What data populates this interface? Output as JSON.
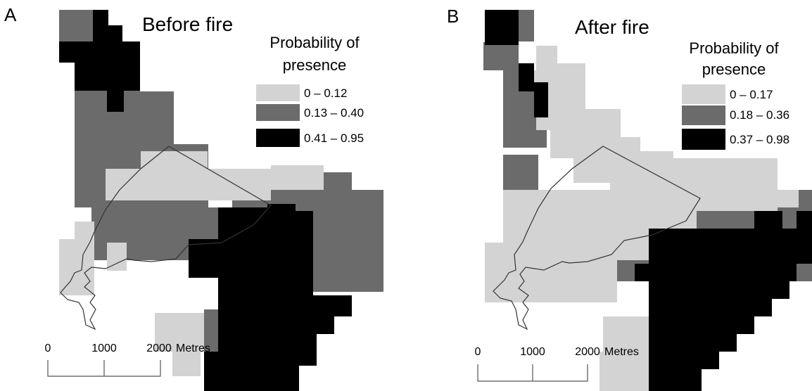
{
  "panels": [
    {
      "letter": "A",
      "title": "Before fire",
      "legend": {
        "title_line1": "Probability of",
        "title_line2": "presence",
        "classes": [
          {
            "label": "0 – 0.12",
            "color": "#d3d3d3"
          },
          {
            "label": "0.13 – 0.40",
            "color": "#6b6b6b"
          },
          {
            "label": "0.41 – 0.95",
            "color": "#000000"
          }
        ]
      },
      "scale": {
        "ticks": [
          "0",
          "1000",
          "2000"
        ],
        "unit": "Metres"
      }
    },
    {
      "letter": "B",
      "title": "After fire",
      "legend": {
        "title_line1": "Probability of",
        "title_line2": "presence",
        "classes": [
          {
            "label": "0 – 0.17",
            "color": "#d3d3d3"
          },
          {
            "label": "0.18 – 0.36",
            "color": "#6b6b6b"
          },
          {
            "label": "0.37 – 0.98",
            "color": "#000000"
          }
        ]
      },
      "scale": {
        "ticks": [
          "0",
          "1000",
          "2000"
        ],
        "unit": "Metres"
      }
    }
  ]
}
